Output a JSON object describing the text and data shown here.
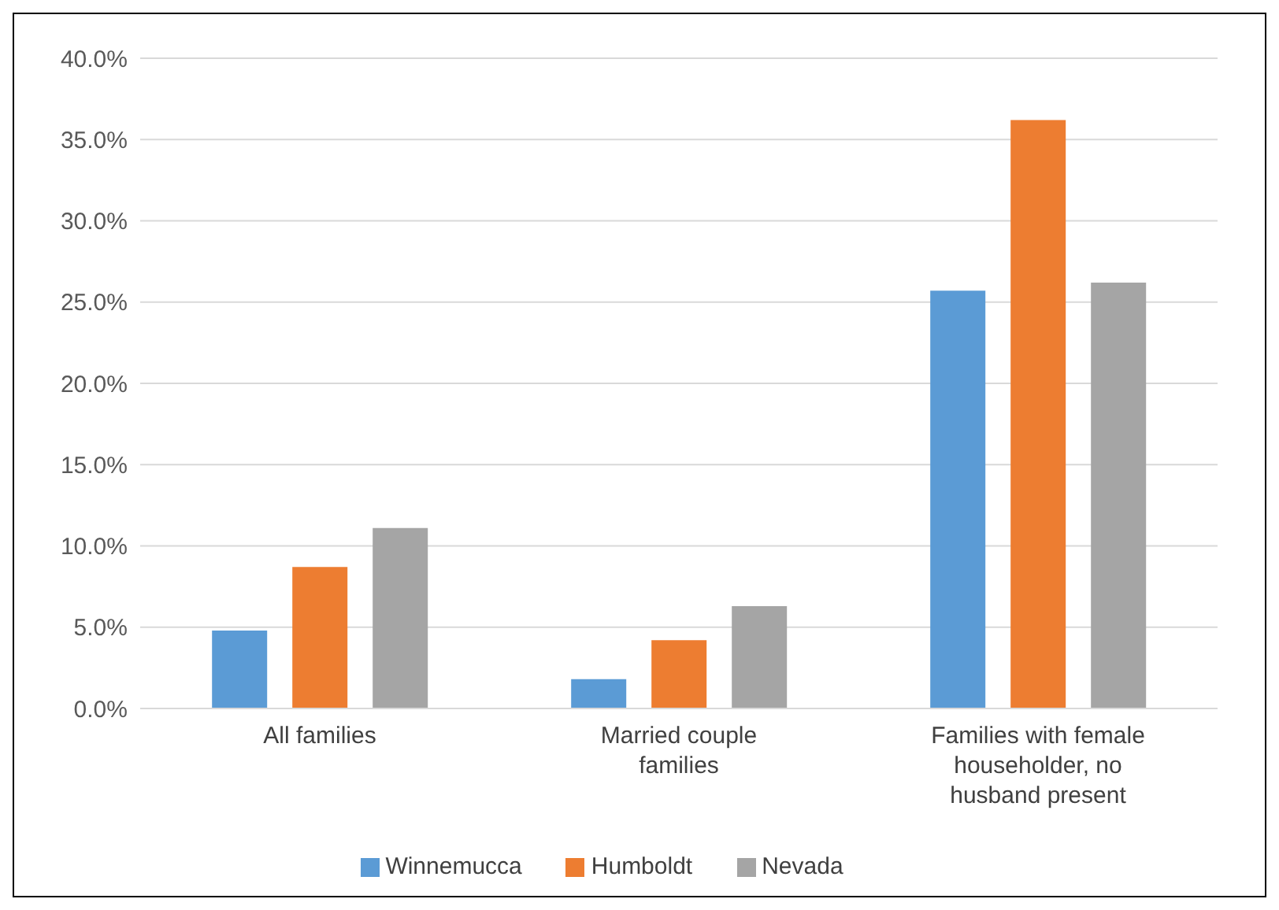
{
  "chart_data": {
    "type": "bar",
    "categories": [
      "All families",
      "Married couple families",
      "Families with female householder, no husband present"
    ],
    "series": [
      {
        "name": "Winnemucca",
        "color": "#5b9bd5",
        "values": [
          4.8,
          1.8,
          25.7
        ]
      },
      {
        "name": "Humboldt",
        "color": "#ed7d31",
        "values": [
          8.7,
          4.2,
          36.2
        ]
      },
      {
        "name": "Nevada",
        "color": "#a5a5a5",
        "values": [
          11.1,
          6.3,
          26.2
        ]
      }
    ],
    "ylim": [
      0,
      40
    ],
    "yticks": [
      {
        "value": 0,
        "label": "0.0%"
      },
      {
        "value": 5,
        "label": "5.0%"
      },
      {
        "value": 10,
        "label": "10.0%"
      },
      {
        "value": 15,
        "label": "15.0%"
      },
      {
        "value": 20,
        "label": "20.0%"
      },
      {
        "value": 25,
        "label": "25.0%"
      },
      {
        "value": 30,
        "label": "30.0%"
      },
      {
        "value": 35,
        "label": "35.0%"
      },
      {
        "value": 40,
        "label": "40.0%"
      }
    ],
    "grid": "y",
    "legend": "bottom"
  }
}
